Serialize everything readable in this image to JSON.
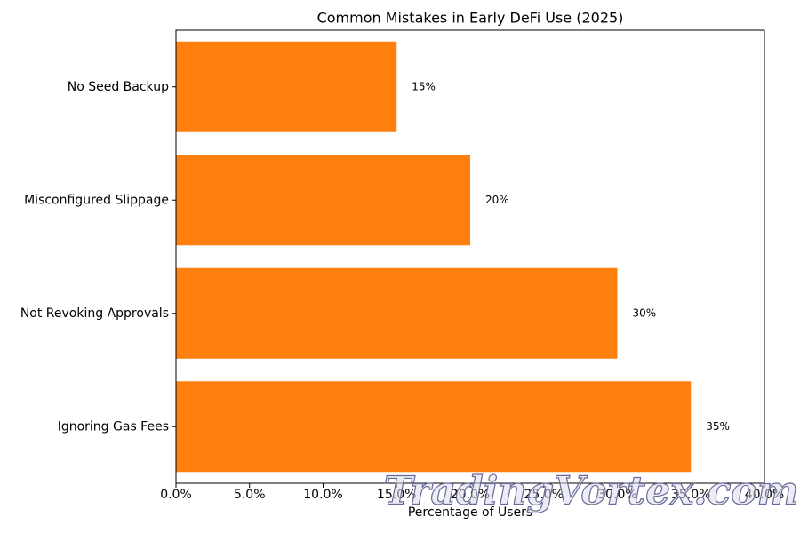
{
  "chart_data": {
    "type": "barh",
    "title": "Common Mistakes in Early DeFi Use (2025)",
    "x_label": "Percentage of Users",
    "categories": [
      "Ignoring Gas Fees",
      "Not Revoking Approvals",
      "Misconfigured Slippage",
      "No Seed Backup"
    ],
    "values": [
      35,
      30,
      20,
      15
    ],
    "value_labels": [
      "35%",
      "30%",
      "20%",
      "15%"
    ],
    "color": "#ff7f0e",
    "xlim": [
      0,
      40
    ],
    "xticks": [
      {
        "value": 0,
        "label": "0.0%"
      },
      {
        "value": 5,
        "label": "5.0%"
      },
      {
        "value": 10,
        "label": "10.0%"
      },
      {
        "value": 15,
        "label": "15.0%"
      },
      {
        "value": 20,
        "label": "20.0%"
      },
      {
        "value": 25,
        "label": "25.0%"
      },
      {
        "value": 30,
        "label": "30.0%"
      },
      {
        "value": 35,
        "label": "35.0%"
      },
      {
        "value": 40,
        "label": "40.0%"
      }
    ],
    "grid": false,
    "watermark": "TradingVortex.com"
  }
}
